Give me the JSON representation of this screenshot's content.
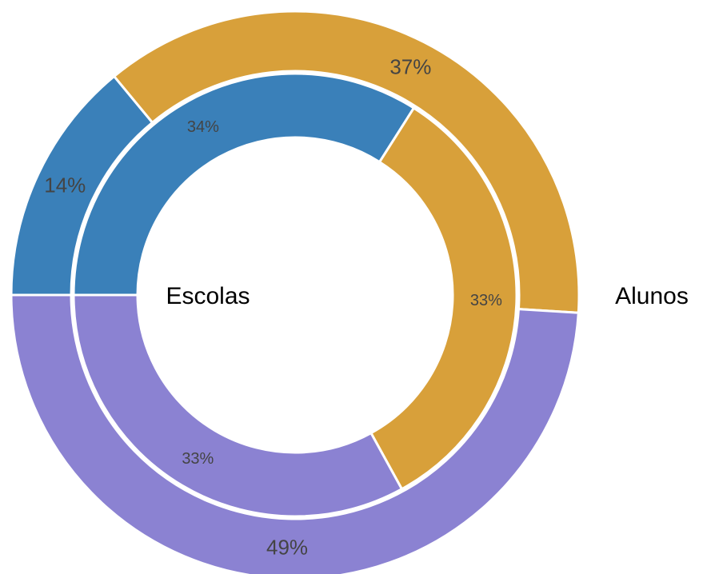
{
  "chart_data": {
    "type": "donut",
    "colors": [
      "#3a80b9",
      "#d8a03a",
      "#8b82d2"
    ],
    "series": [
      {
        "name": "Alunos",
        "values": [
          14,
          37,
          49
        ],
        "value_labels": [
          "14%",
          "37%",
          "49%"
        ]
      },
      {
        "name": "Escolas",
        "values": [
          34,
          33,
          33
        ],
        "value_labels": [
          "34%",
          "33%",
          "33%"
        ]
      }
    ]
  }
}
